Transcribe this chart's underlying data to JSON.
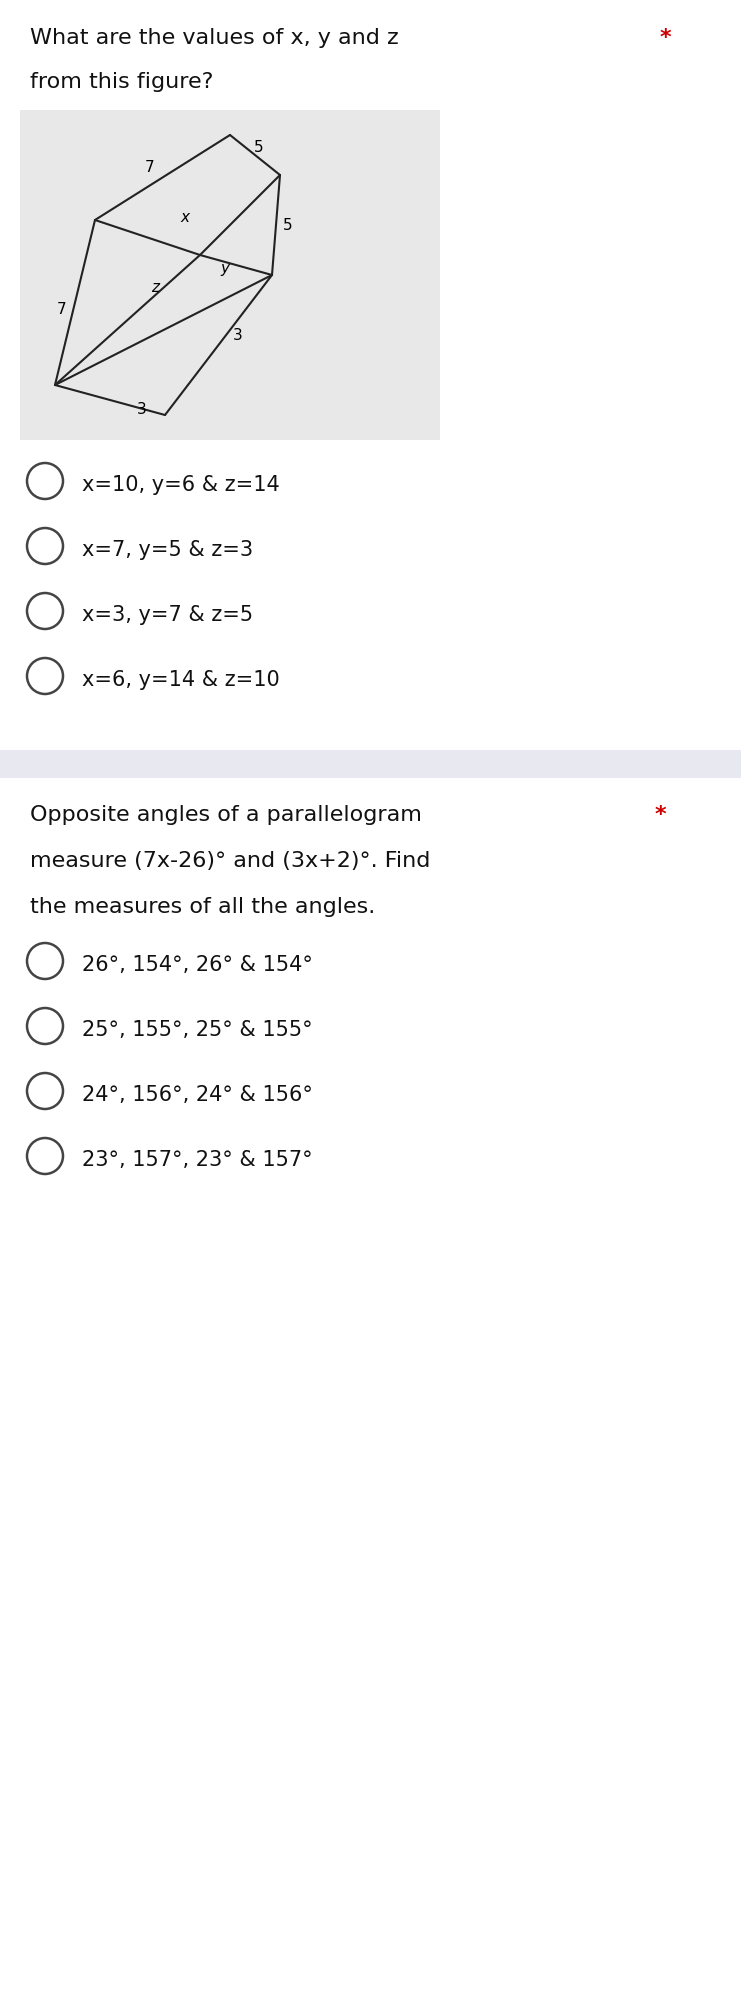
{
  "q1_title_line1": "What are the values of x, y and z",
  "q1_title_line2": "from this figure?",
  "q1_star": "*",
  "q1_options": [
    "x=10, y=6 & z=14",
    "x=7, y=5 & z=3",
    "x=3, y=7 & z=5",
    "x=6, y=14 & z=10"
  ],
  "q2_title_line1": "Opposite angles of a parallelogram",
  "q2_title_line2": "measure (7x-26)° and (3x+2)°. Find",
  "q2_title_line3": "the measures of all the angles.",
  "q2_star": "*",
  "q2_options": [
    "26°, 154°, 26° & 154°",
    "25°, 155°, 25° & 155°",
    "24°, 156°, 24° & 156°",
    "23°, 157°, 23° & 157°"
  ],
  "white_bg": "#ffffff",
  "grey_box_bg": "#e8e8e8",
  "separator_bg": "#e8e8f0",
  "text_color": "#111111",
  "star_color": "#cc0000",
  "radio_color": "#444444",
  "line_color": "#222222",
  "font_size_title": 16,
  "font_size_options": 15,
  "font_size_label": 11
}
